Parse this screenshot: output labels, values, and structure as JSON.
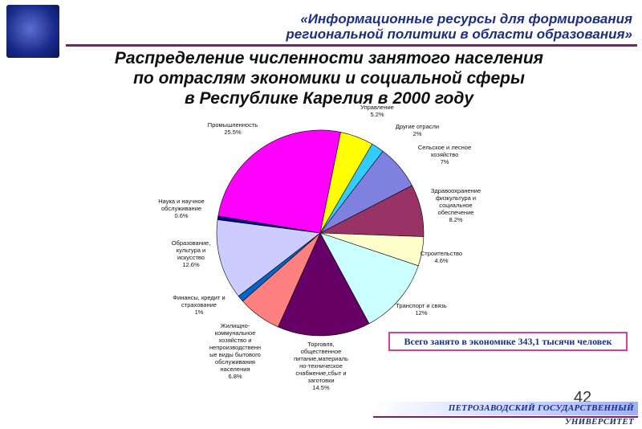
{
  "header": {
    "line1": "«Информационные ресурсы для формирования",
    "line2": "региональной политики в области образования»"
  },
  "footer": {
    "university": "ПЕТРОЗАВОДСКИЙ ГОСУДАРСТВЕННЫЙ УНИВЕРСИТЕТ",
    "page_number": "42"
  },
  "total_note": "Всего занято в экономике 343,1 тысячи человек",
  "colors": {
    "header_text": "#1c2f80",
    "accent_line": "#7a1f6e",
    "box_border": "#d43fa3"
  },
  "chart_data": {
    "type": "pie",
    "title": [
      "Распределение численности занятого населения",
      "по отраслям экономики и социальной сферы",
      "в Республике Карелия в 2000 году"
    ],
    "slices": [
      {
        "label": [
          "Управление"
        ],
        "value": 5.2,
        "value_label": "5.2%",
        "color": "#ffff00"
      },
      {
        "label": [
          "Другие отрасли"
        ],
        "value": 2,
        "value_label": "2%",
        "color": "#33ccff"
      },
      {
        "label": [
          "Сельское и лесное",
          "хозяйство"
        ],
        "value": 7,
        "value_label": "7%",
        "color": "#8080e0"
      },
      {
        "label": [
          "Здравоохранение",
          "физкультура и",
          "социальное",
          "обеспечение"
        ],
        "value": 8.2,
        "value_label": "8.2%",
        "color": "#993366"
      },
      {
        "label": [
          "Строительство"
        ],
        "value": 4.6,
        "value_label": "4.6%",
        "color": "#ffffcc"
      },
      {
        "label": [
          "Транспорт и связь"
        ],
        "value": 12,
        "value_label": "12%",
        "color": "#ccffff"
      },
      {
        "label": [
          "Торговля,",
          "общественное",
          "питание,материаль",
          "но-техническое",
          "снабжение,сбыт и",
          "заготовки"
        ],
        "value": 14.5,
        "value_label": "14.5%",
        "color": "#660066"
      },
      {
        "label": [
          "Жилищно-",
          "коммунальное",
          "хозяйство и",
          "непроизводственн",
          "ые виды бытового",
          "обслуживания",
          "населения"
        ],
        "value": 6.8,
        "value_label": "6.8%",
        "color": "#ff8080"
      },
      {
        "label": [
          "Финансы, кредит и",
          "страхование"
        ],
        "value": 1,
        "value_label": "1%",
        "color": "#0066cc"
      },
      {
        "label": [
          "Образование,",
          "культура и",
          "искусство"
        ],
        "value": 12.6,
        "value_label": "12.6%",
        "color": "#ccccff"
      },
      {
        "label": [
          "Наука и научное",
          "обслуживание"
        ],
        "value": 0.6,
        "value_label": "0.6%",
        "color": "#000080"
      },
      {
        "label": [
          "Промышленность"
        ],
        "value": 25.5,
        "value_label": "25.5%",
        "color": "#ff00ff"
      }
    ]
  }
}
